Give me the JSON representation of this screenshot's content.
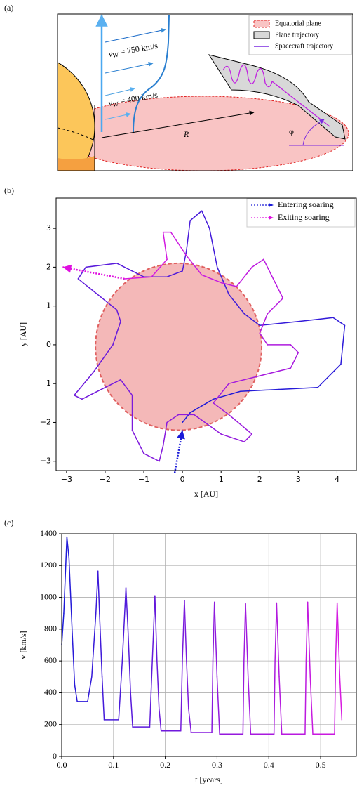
{
  "chart_data": [
    {
      "type": "diagram",
      "panel": "(a)",
      "labels": {
        "v_fast": {
          "symbol": "v",
          "sub": "W",
          "rest": " = 750 km/s"
        },
        "v_slow": {
          "symbol": "v",
          "sub": "W",
          "rest": " = 400 km/s"
        },
        "distance": "R",
        "angle": "φ"
      },
      "legend": [
        "Equatorial plane",
        "Plane trajectory",
        "Spacecraft trajectory"
      ]
    },
    {
      "type": "line",
      "panel": "(b)",
      "xlabel": "x [AU]",
      "ylabel": "y [AU]",
      "xlim": [
        -3.27,
        4.5
      ],
      "ylim": [
        -3.24,
        3.78
      ],
      "grid": false,
      "xticks": [
        {
          "value": -3,
          "label": "−3"
        },
        {
          "value": -2,
          "label": "−2"
        },
        {
          "value": -1,
          "label": "−1"
        },
        0,
        1,
        2,
        3,
        4
      ],
      "yticks": [
        {
          "value": -3,
          "label": "−3"
        },
        {
          "value": -2,
          "label": "−2"
        },
        {
          "value": -1,
          "label": "−1"
        },
        0,
        1,
        2,
        3
      ],
      "circle": {
        "center": [
          -0.1,
          -0.05
        ],
        "radius": 2.15,
        "color": "#f4b8b8",
        "edge": "#e06060"
      },
      "series": [
        {
          "colors": [
            "#1a1ad8",
            "#d81ae0"
          ],
          "x": [
            0,
            0.2,
            0.8,
            1.5,
            2.5,
            3.5,
            4.1,
            4.2,
            3.9,
            3.0,
            2.0,
            1.6,
            1.2,
            0.9,
            0.7,
            0.5,
            0.2,
            0.1,
            0,
            -0.4,
            -1.0,
            -1.7,
            -2.5,
            -2.7,
            -2.2,
            -1.7,
            -1.6,
            -1.8,
            -2.3,
            -2.8,
            -2.6,
            -2.0,
            -1.6,
            -1.3,
            -1.3,
            -1.0,
            -0.6,
            -0.5,
            -0.4,
            -0.1,
            0.3,
            1.0,
            1.6,
            1.8,
            1.2,
            0.8,
            1.2,
            2.0,
            2.8,
            3.0,
            2.8,
            2.2,
            2.0,
            2.2,
            2.6,
            2.1,
            1.8,
            1.4,
            1.0,
            0.5,
            0.1,
            -0.3,
            -0.5,
            -0.4,
            -0.8,
            -1.5
          ],
          "y": [
            -2.0,
            -1.75,
            -1.4,
            -1.2,
            -1.15,
            -1.1,
            -0.5,
            0.5,
            0.7,
            0.6,
            0.5,
            0.8,
            1.3,
            2.0,
            3.0,
            3.45,
            3.2,
            2.4,
            1.9,
            1.75,
            1.75,
            2.1,
            2.0,
            1.7,
            1.3,
            0.9,
            0.6,
            0.0,
            -0.7,
            -1.3,
            -1.4,
            -1.1,
            -0.9,
            -1.3,
            -2.2,
            -2.8,
            -3.0,
            -2.6,
            -2.0,
            -1.8,
            -1.8,
            -2.3,
            -2.5,
            -2.3,
            -1.8,
            -1.5,
            -1.0,
            -0.8,
            -0.6,
            -0.2,
            0.0,
            0.0,
            0.3,
            0.8,
            1.2,
            2.2,
            2.0,
            1.5,
            1.6,
            1.8,
            2.3,
            2.9,
            2.9,
            2.2,
            1.75,
            1.7
          ]
        }
      ],
      "annotations": [
        {
          "name": "Entering soaring",
          "color": "#1a1ad8",
          "from": [
            -0.2,
            -3.3
          ],
          "to": [
            0,
            -2.2
          ]
        },
        {
          "name": "Exiting soaring",
          "color": "#e010e0",
          "from": [
            -1.5,
            1.7
          ],
          "to": [
            -3.1,
            2.0
          ]
        }
      ]
    },
    {
      "type": "line",
      "panel": "(c)",
      "xlabel": "t [years]",
      "ylabel": "v [km/s]",
      "xlim": [
        0,
        0.569
      ],
      "ylim": [
        0,
        1400
      ],
      "grid": true,
      "xticks": [
        {
          "value": 0,
          "label": "0.0"
        },
        0.1,
        0.2,
        0.3,
        0.4,
        0.5
      ],
      "yticks": [
        0,
        200,
        400,
        600,
        800,
        1000,
        1200,
        1400
      ],
      "series": [
        {
          "colors": [
            "#1a1ad8",
            "#d81ae0"
          ],
          "x": [
            0,
            0.004,
            0.01,
            0.014,
            0.02,
            0.025,
            0.03,
            0.05,
            0.058,
            0.066,
            0.07,
            0.073,
            0.078,
            0.082,
            0.11,
            0.117,
            0.124,
            0.128,
            0.133,
            0.137,
            0.17,
            0.175,
            0.18,
            0.184,
            0.188,
            0.192,
            0.23,
            0.233,
            0.237,
            0.241,
            0.245,
            0.25,
            0.29,
            0.292,
            0.295,
            0.3,
            0.305,
            0.35,
            0.352,
            0.355,
            0.36,
            0.365,
            0.41,
            0.412,
            0.415,
            0.42,
            0.425,
            0.47,
            0.472,
            0.475,
            0.48,
            0.485,
            0.527,
            0.529,
            0.532,
            0.537,
            0.541
          ],
          "y": [
            700,
            900,
            1380,
            1250,
            800,
            450,
            345,
            345,
            500,
            900,
            1165,
            900,
            500,
            230,
            230,
            600,
            1060,
            800,
            400,
            185,
            185,
            600,
            1010,
            600,
            300,
            160,
            160,
            600,
            980,
            600,
            300,
            150,
            150,
            600,
            970,
            500,
            140,
            140,
            600,
            960,
            500,
            140,
            140,
            600,
            965,
            500,
            140,
            140,
            600,
            970,
            500,
            140,
            140,
            600,
            965,
            500,
            230
          ]
        }
      ]
    }
  ]
}
